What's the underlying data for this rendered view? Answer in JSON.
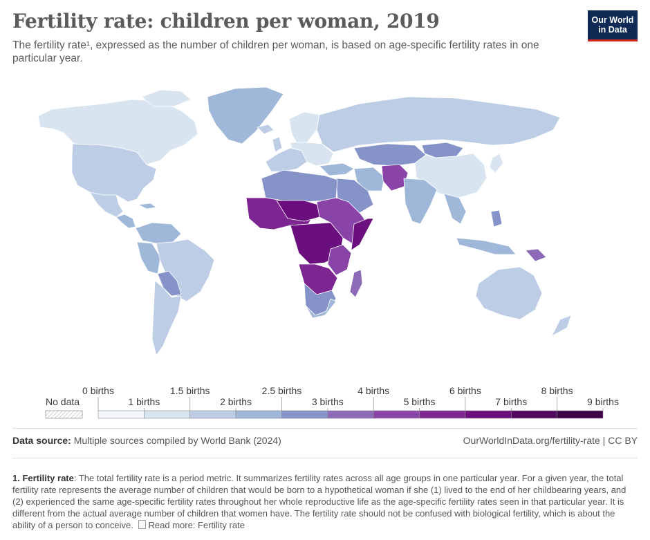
{
  "header": {
    "title": "Fertility rate: children per woman, 2019",
    "subtitle": "The fertility rate¹, expressed as the number of children per woman, is based on age-specific fertility rates in one particular year."
  },
  "logo": {
    "line1": "Our World",
    "line2": "in Data"
  },
  "legend": {
    "no_data_label": "No data",
    "labels_top": [
      "0 births",
      "1.5 births",
      "2.5 births",
      "4 births",
      "6 births",
      "8 births"
    ],
    "labels_bottom": [
      "1 births",
      "2 births",
      "3 births",
      "5 births",
      "7 births",
      "9 births"
    ],
    "bins": [
      {
        "from": 0,
        "to": 1,
        "color": "#f3f6fa"
      },
      {
        "from": 1,
        "to": 1.5,
        "color": "#d9e4f1"
      },
      {
        "from": 1.5,
        "to": 2,
        "color": "#bccde5"
      },
      {
        "from": 2,
        "to": 2.5,
        "color": "#9fb7d8"
      },
      {
        "from": 2.5,
        "to": 3,
        "color": "#8593c8"
      },
      {
        "from": 3,
        "to": 4,
        "color": "#8d6ab8"
      },
      {
        "from": 4,
        "to": 5,
        "color": "#8a44a8"
      },
      {
        "from": 5,
        "to": 6,
        "color": "#7d2591"
      },
      {
        "from": 6,
        "to": 7,
        "color": "#6a0f7d"
      },
      {
        "from": 7,
        "to": 8,
        "color": "#53085f"
      },
      {
        "from": 8,
        "to": 9,
        "color": "#3f0249"
      }
    ]
  },
  "footer": {
    "source_label": "Data source:",
    "source_text": "Multiple sources compiled by World Bank (2024)",
    "credit": "OurWorldInData.org/fertility-rate | CC BY"
  },
  "note": {
    "label": "1. Fertility rate",
    "text": ": The total fertility rate is a period metric. It summarizes fertility rates across all age groups in one particular year. For a given year, the total fertility rate represents the average number of children that would be born to a hypothetical woman if she (1) lived to the end of her childbearing years, and (2) experienced the same age-specific fertility rates throughout her whole reproductive life as the age-specific fertility rates seen in that particular year. It is different from the actual average number of children that women have. The fertility rate should not be confused with biological fertility, which is about the ability of a person to conceive.",
    "read_more": "Read more: Fertility rate"
  }
}
